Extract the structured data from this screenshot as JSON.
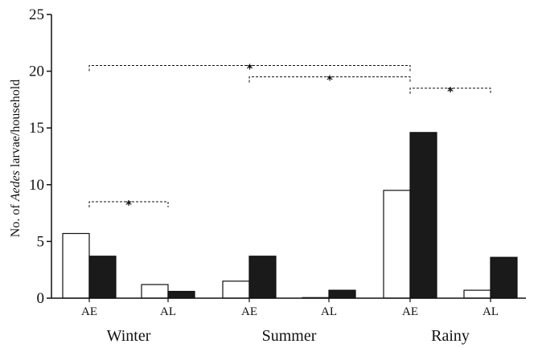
{
  "chart_data": {
    "type": "bar",
    "title": "",
    "xlabel": "",
    "ylabel": {
      "prefix": "No. of ",
      "italic": "Aedes",
      "suffix": " larvae/household"
    },
    "ylim": [
      0,
      25
    ],
    "yticks": [
      "0",
      "5",
      "10",
      "15",
      "20",
      "25"
    ],
    "seasons": [
      "Winter",
      "Summer",
      "Rainy"
    ],
    "categories": [
      "AE",
      "AL",
      "AE",
      "AL",
      "AE",
      "AL"
    ],
    "series": [
      {
        "name": "open",
        "fill": "#ffffff",
        "values": [
          5.7,
          1.2,
          1.5,
          0.05,
          9.5,
          0.7
        ]
      },
      {
        "name": "filled",
        "fill": "#1a1a1a",
        "values": [
          3.7,
          0.6,
          3.7,
          0.7,
          14.6,
          3.6
        ]
      }
    ],
    "significance": [
      {
        "from": 0,
        "to": 1,
        "y": 8.5,
        "label": "*"
      },
      {
        "from": 0,
        "to": 4,
        "y": 20.5,
        "label": "*"
      },
      {
        "from": 2,
        "to": 4,
        "y": 19.5,
        "label": "*"
      },
      {
        "from": 4,
        "to": 5,
        "y": 18.5,
        "label": "*"
      }
    ]
  }
}
